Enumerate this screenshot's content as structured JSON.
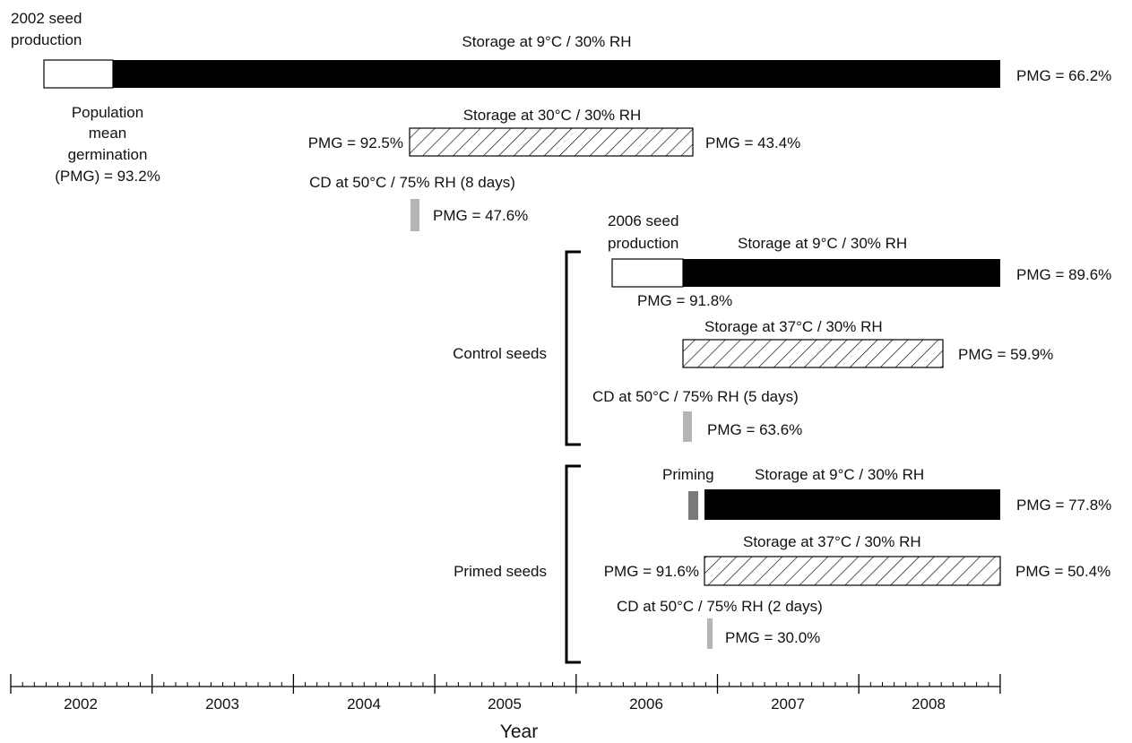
{
  "labels": {
    "seed_2002": "2002 seed",
    "production_2002": "production",
    "storage_9_top": "Storage at 9°C / 30% RH",
    "pmg_66": "PMG = 66.2%",
    "pop_line1": "Population",
    "pop_line2": "mean",
    "pop_line3": "germination",
    "pop_line4": "(PMG) = 93.2%",
    "storage_30": "Storage at 30°C / 30% RH",
    "pmg_92_5": "PMG = 92.5%",
    "pmg_43_4": "PMG = 43.4%",
    "cd_8": "CD at 50°C / 75% RH (8 days)",
    "pmg_47_6": "PMG = 47.6%",
    "seed_2006": "2006 seed",
    "production_2006": "production",
    "storage_9_mid": "Storage at 9°C / 30% RH",
    "pmg_89_6": "PMG = 89.6%",
    "pmg_91_8": "PMG = 91.8%",
    "storage_37_mid": "Storage at 37°C / 30% RH",
    "pmg_59_9": "PMG = 59.9%",
    "control_seeds": "Control seeds",
    "cd_5": "CD at 50°C / 75% RH (5 days)",
    "pmg_63_6": "PMG = 63.6%",
    "priming": "Priming",
    "storage_9_low": "Storage at 9°C / 30% RH",
    "pmg_77_8": "PMG = 77.8%",
    "storage_37_low": "Storage at 37°C / 30% RH",
    "pmg_91_6": "PMG = 91.6%",
    "pmg_50_4": "PMG = 50.4%",
    "primed_seeds": "Primed seeds",
    "cd_2": "CD at 50°C / 75% RH (2 days)",
    "pmg_30": "PMG = 30.0%"
  },
  "axis": {
    "title": "Year",
    "years": [
      "2002",
      "2003",
      "2004",
      "2005",
      "2006",
      "2007",
      "2008"
    ]
  },
  "colors": {
    "black_bar": "#000000",
    "grey_light": "#b5b5b5",
    "grey_dark": "#7a7a7a"
  }
}
